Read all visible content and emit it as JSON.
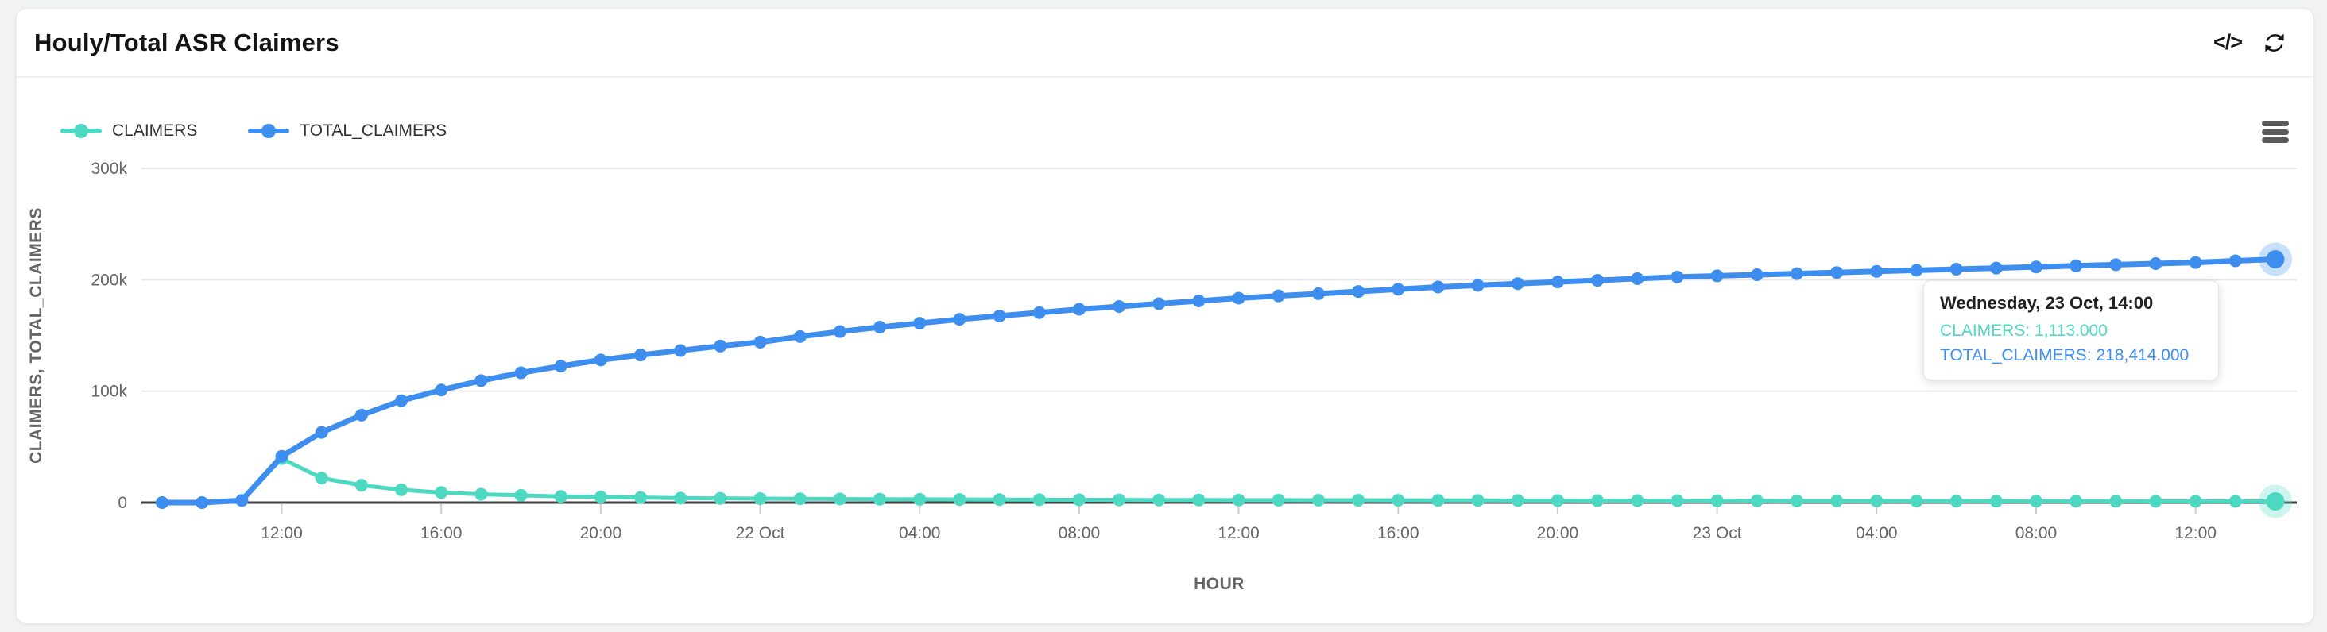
{
  "card": {
    "title": "Houly/Total ASR Claimers",
    "actions": {
      "code_icon_label": "</>",
      "refresh_icon": "refresh",
      "menu_icon": "hamburger"
    }
  },
  "chart_data": {
    "type": "line",
    "title": "",
    "xlabel": "HOUR",
    "ylabel": "CLAIMERS, TOTAL_CLAIMERS",
    "ylim": [
      0,
      300000
    ],
    "grid": true,
    "legend_position": "top-left",
    "y_ticks": [
      {
        "value": 0,
        "label": "0"
      },
      {
        "value": 100000,
        "label": "100k"
      },
      {
        "value": 200000,
        "label": "200k"
      },
      {
        "value": 300000,
        "label": "300k"
      }
    ],
    "x_tick_indices": [
      3,
      7,
      11,
      15,
      19,
      23,
      27,
      31,
      35,
      39,
      43,
      47,
      51
    ],
    "x_tick_labels": [
      "12:00",
      "16:00",
      "20:00",
      "22 Oct",
      "04:00",
      "08:00",
      "12:00",
      "16:00",
      "20:00",
      "23 Oct",
      "04:00",
      "08:00",
      "12:00"
    ],
    "x": [
      "21 Oct 09:00",
      "21 Oct 10:00",
      "21 Oct 11:00",
      "21 Oct 12:00",
      "21 Oct 13:00",
      "21 Oct 14:00",
      "21 Oct 15:00",
      "21 Oct 16:00",
      "21 Oct 17:00",
      "21 Oct 18:00",
      "21 Oct 19:00",
      "21 Oct 20:00",
      "21 Oct 21:00",
      "21 Oct 22:00",
      "21 Oct 23:00",
      "22 Oct 00:00",
      "22 Oct 01:00",
      "22 Oct 02:00",
      "22 Oct 03:00",
      "22 Oct 04:00",
      "22 Oct 05:00",
      "22 Oct 06:00",
      "22 Oct 07:00",
      "22 Oct 08:00",
      "22 Oct 09:00",
      "22 Oct 10:00",
      "22 Oct 11:00",
      "22 Oct 12:00",
      "22 Oct 13:00",
      "22 Oct 14:00",
      "22 Oct 15:00",
      "22 Oct 16:00",
      "22 Oct 17:00",
      "22 Oct 18:00",
      "22 Oct 19:00",
      "22 Oct 20:00",
      "22 Oct 21:00",
      "22 Oct 22:00",
      "22 Oct 23:00",
      "23 Oct 00:00",
      "23 Oct 01:00",
      "23 Oct 02:00",
      "23 Oct 03:00",
      "23 Oct 04:00",
      "23 Oct 05:00",
      "23 Oct 06:00",
      "23 Oct 07:00",
      "23 Oct 08:00",
      "23 Oct 09:00",
      "23 Oct 10:00",
      "23 Oct 11:00",
      "23 Oct 12:00",
      "23 Oct 13:00",
      "23 Oct 14:00"
    ],
    "series": [
      {
        "name": "CLAIMERS",
        "color": "#4DD8C2",
        "values": [
          0,
          0,
          2000,
          39500,
          22000,
          15500,
          11500,
          9000,
          7500,
          6500,
          5500,
          5000,
          4500,
          4000,
          3800,
          3600,
          3400,
          3200,
          3000,
          2900,
          2800,
          2700,
          2600,
          2500,
          2400,
          2350,
          2300,
          2250,
          2200,
          2150,
          2100,
          2050,
          2000,
          1950,
          1900,
          1850,
          1800,
          1750,
          1700,
          1650,
          1600,
          1550,
          1500,
          1450,
          1400,
          1350,
          1300,
          1280,
          1250,
          1220,
          1200,
          1180,
          1150,
          1113
        ]
      },
      {
        "name": "TOTAL_CLAIMERS",
        "color": "#3E8EF0",
        "values": [
          0,
          0,
          2000,
          41500,
          63000,
          78500,
          91500,
          101000,
          109500,
          116500,
          122500,
          128000,
          132500,
          136500,
          140500,
          144000,
          149000,
          153500,
          157500,
          161000,
          164500,
          167500,
          170500,
          173500,
          176000,
          178500,
          181000,
          183500,
          185500,
          187500,
          189500,
          191500,
          193500,
          195000,
          196500,
          198000,
          199500,
          201000,
          202500,
          203500,
          204500,
          205500,
          206500,
          207500,
          208500,
          209500,
          210500,
          211500,
          212500,
          213500,
          214500,
          215500,
          217000,
          218414
        ]
      }
    ],
    "hover_point_index": 53,
    "colors": {
      "axis_line": "#424242",
      "gridline": "#e8e8e8",
      "tick_label": "#666666",
      "axis_title": "#666666"
    }
  },
  "tooltip": {
    "title": "Wednesday, 23 Oct, 14:00",
    "rows": [
      {
        "text": "CLAIMERS: 1,113.000",
        "series": "CLAIMERS"
      },
      {
        "text": "TOTAL_CLAIMERS: 218,414.000",
        "series": "TOTAL_CLAIMERS"
      }
    ]
  }
}
